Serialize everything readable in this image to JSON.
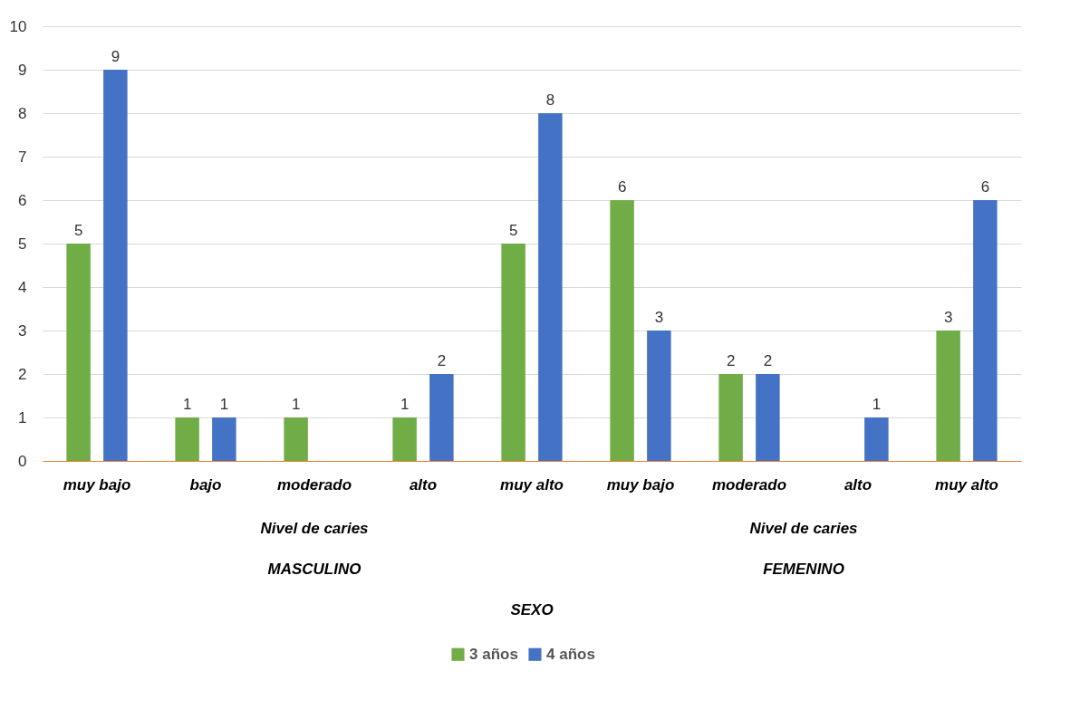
{
  "chart_data": {
    "type": "bar",
    "categories": [
      "muy bajo",
      "bajo",
      "moderado",
      "alto",
      "muy alto",
      "muy bajo",
      "moderado",
      "alto",
      "muy alto"
    ],
    "series": [
      {
        "name": "3 años",
        "color": "#70ad47",
        "values": [
          5,
          1,
          1,
          1,
          5,
          6,
          2,
          null,
          3
        ]
      },
      {
        "name": "4 años",
        "color": "#4472c4",
        "values": [
          9,
          1,
          null,
          2,
          8,
          3,
          2,
          1,
          6
        ]
      }
    ],
    "annotations": [
      "Nivel de caries",
      "Nivel de caries",
      "MASCULINO",
      "FEMENINO",
      "SEXO"
    ],
    "ylim": [
      0,
      10
    ],
    "yticks": [
      0,
      1,
      2,
      3,
      4,
      5,
      6,
      7,
      8,
      9,
      10
    ],
    "grid": "y",
    "legend": "bottom",
    "data_labels": true
  }
}
